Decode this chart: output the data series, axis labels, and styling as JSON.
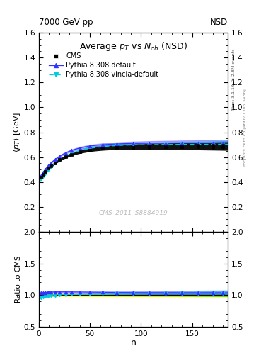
{
  "title_top": "7000 GeV pp",
  "title_top_right": "NSD",
  "main_title": "Average $p_T$ vs $N_{ch}$ (NSD)",
  "xlabel": "n",
  "ylabel_main": "$\\langle p_T \\rangle$ [GeV]",
  "ylabel_ratio": "Ratio to CMS",
  "watermark": "CMS_2011_S8884919",
  "rivet_text": "Rivet 3.1.10, ≥ 2.8M events",
  "arxiv_text": "mcplots.cern.ch [arXiv:1306.3436]",
  "xlim": [
    0,
    185
  ],
  "ylim_main": [
    0.0,
    1.6
  ],
  "ylim_ratio": [
    0.5,
    2.0
  ],
  "yticks_main": [
    0.2,
    0.4,
    0.6,
    0.8,
    1.0,
    1.2,
    1.4,
    1.6
  ],
  "yticks_ratio": [
    0.5,
    1.0,
    1.5,
    2.0
  ],
  "xticks": [
    0,
    50,
    100,
    150
  ],
  "cms_color": "#000000",
  "pythia_default_color": "#3333ff",
  "pythia_vincia_color": "#00ccdd",
  "band_yellow_color": "#ffff00",
  "band_green_color": "#00bb00",
  "cms_marker": "s",
  "pythia_default_marker": "^",
  "pythia_vincia_marker": "v",
  "legend_labels": [
    "CMS",
    "Pythia 8.308 default",
    "Pythia 8.308 vincia-default"
  ]
}
